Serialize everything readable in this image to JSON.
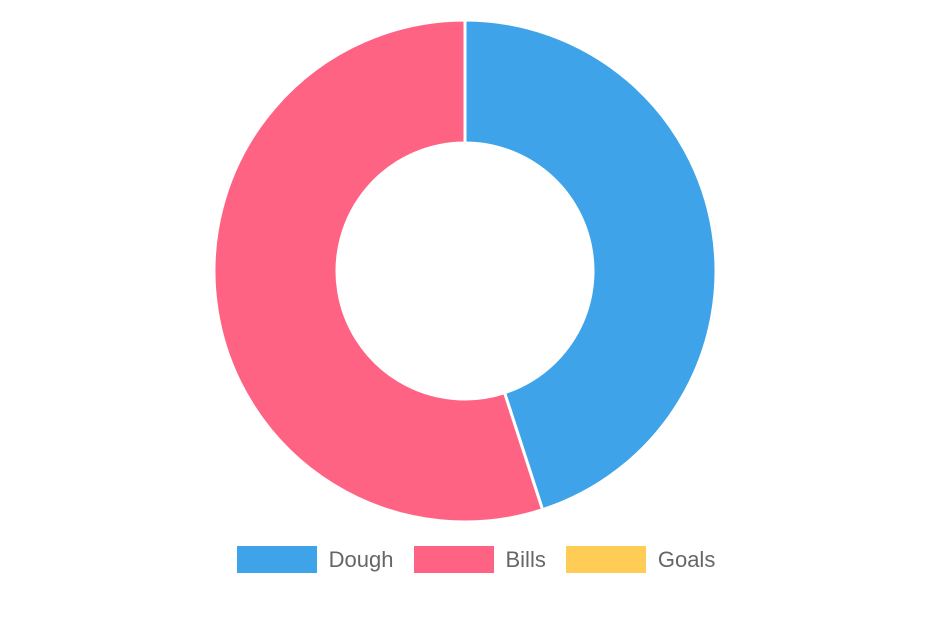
{
  "chart_data": {
    "type": "doughnut",
    "labels": [
      "Dough",
      "Bills",
      "Goals"
    ],
    "values": [
      45,
      55,
      0
    ],
    "colors": [
      "#3ea3e8",
      "#ff6384",
      "#ffcd56"
    ],
    "border_color": "#ffffff",
    "legend_position": "bottom",
    "title": ""
  }
}
